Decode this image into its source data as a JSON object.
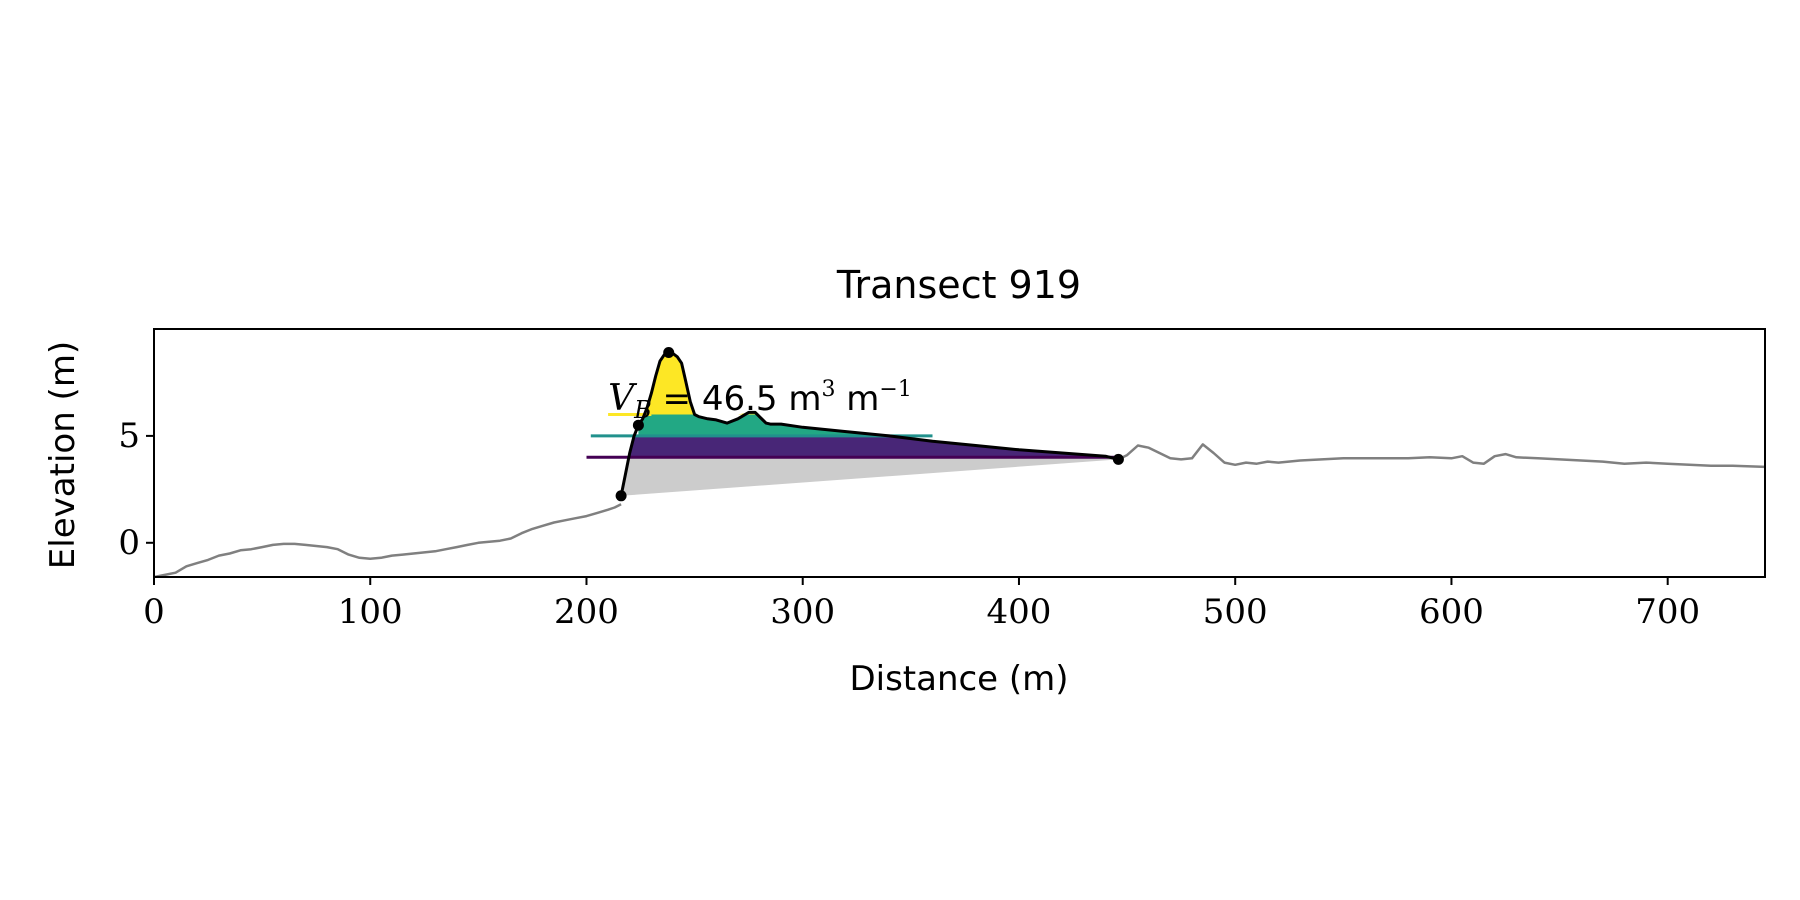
{
  "chart_data": {
    "type": "line",
    "title": "Transect 919",
    "xlabel": "Distance (m)",
    "ylabel": "Elevation (m)",
    "xlim": [
      0,
      745
    ],
    "ylim": [
      -1.6,
      10.0
    ],
    "xticks": [
      0,
      100,
      200,
      300,
      400,
      500,
      600,
      700
    ],
    "yticks": [
      0,
      5
    ],
    "grid": false,
    "annotation": {
      "symbol": "V",
      "subscript": "B",
      "text": " = 46.5 m",
      "unit_sup1": "3",
      "unit_mid": " m",
      "unit_sup2": "−1",
      "x": 210,
      "y": 6.2
    },
    "colors": {
      "profile": "#808080",
      "dune": "#000000",
      "base_fill": "#cccccc",
      "level1": "#440154",
      "level1_fill": "#482677",
      "level2": "#21918c",
      "level2_fill": "#22a884",
      "level3": "#fde725",
      "markers": "#000000"
    },
    "profile": {
      "x": [
        0,
        5,
        10,
        15,
        20,
        25,
        30,
        35,
        40,
        45,
        50,
        55,
        60,
        65,
        70,
        75,
        80,
        85,
        90,
        95,
        100,
        105,
        110,
        115,
        120,
        125,
        130,
        135,
        140,
        145,
        150,
        155,
        160,
        165,
        170,
        175,
        180,
        185,
        190,
        195,
        200,
        205,
        210,
        213,
        216
      ],
      "y": [
        -1.6,
        -1.5,
        -1.4,
        -1.1,
        -0.95,
        -0.8,
        -0.6,
        -0.5,
        -0.35,
        -0.3,
        -0.2,
        -0.1,
        -0.05,
        -0.05,
        -0.1,
        -0.15,
        -0.2,
        -0.3,
        -0.55,
        -0.7,
        -0.75,
        -0.7,
        -0.6,
        -0.55,
        -0.5,
        -0.45,
        -0.4,
        -0.3,
        -0.2,
        -0.1,
        0.0,
        0.05,
        0.1,
        0.2,
        0.45,
        0.65,
        0.8,
        0.95,
        1.05,
        1.15,
        1.25,
        1.4,
        1.55,
        1.65,
        1.8
      ]
    },
    "profile_right": {
      "x": [
        446,
        450,
        455,
        460,
        465,
        470,
        475,
        480,
        485,
        490,
        495,
        500,
        505,
        510,
        515,
        520,
        530,
        540,
        550,
        560,
        570,
        580,
        590,
        600,
        605,
        610,
        615,
        620,
        625,
        630,
        640,
        650,
        660,
        670,
        680,
        690,
        700,
        710,
        720,
        730,
        745
      ],
      "y": [
        3.9,
        4.1,
        4.55,
        4.45,
        4.2,
        3.95,
        3.9,
        3.95,
        4.6,
        4.2,
        3.75,
        3.65,
        3.75,
        3.7,
        3.8,
        3.75,
        3.85,
        3.9,
        3.95,
        3.95,
        3.95,
        3.95,
        4.0,
        3.95,
        4.05,
        3.75,
        3.7,
        4.05,
        4.15,
        4.0,
        3.95,
        3.9,
        3.85,
        3.8,
        3.7,
        3.75,
        3.7,
        3.65,
        3.6,
        3.6,
        3.55
      ]
    },
    "dune": {
      "x": [
        216,
        218,
        220,
        222,
        224,
        226,
        228,
        230,
        232,
        234,
        236,
        238,
        240,
        242,
        244,
        246,
        248,
        250,
        252,
        256,
        260,
        265,
        270,
        275,
        278,
        280,
        283,
        285,
        290,
        300,
        320,
        340,
        360,
        380,
        400,
        420,
        440,
        446
      ],
      "y": [
        2.2,
        3.2,
        4.2,
        5.0,
        5.5,
        5.8,
        6.3,
        7.0,
        7.8,
        8.5,
        8.8,
        8.9,
        8.85,
        8.7,
        8.4,
        7.5,
        6.6,
        6.0,
        5.9,
        5.8,
        5.75,
        5.6,
        5.8,
        6.1,
        6.1,
        5.9,
        5.6,
        5.55,
        5.55,
        5.4,
        5.2,
        5.0,
        4.75,
        4.55,
        4.35,
        4.2,
        4.05,
        3.9
      ]
    },
    "baseline": {
      "x": [
        216,
        446
      ],
      "y": [
        2.2,
        3.9
      ]
    },
    "levels": [
      {
        "name": "level-1",
        "y": 4.0,
        "x_start": 200,
        "color_key": "level1",
        "fill_key": "level1_fill"
      },
      {
        "name": "level-2",
        "y": 5.0,
        "x_start": 202,
        "color_key": "level2",
        "fill_key": "level2_fill"
      },
      {
        "name": "level-3",
        "y": 6.0,
        "x_start": 210,
        "color_key": "level3",
        "fill_key": "level3"
      }
    ],
    "markers": [
      {
        "name": "dune-toe-marker",
        "x": 216,
        "y": 2.2
      },
      {
        "name": "dune-mid-marker",
        "x": 224,
        "y": 5.5
      },
      {
        "name": "dune-crest-marker",
        "x": 238,
        "y": 8.9
      },
      {
        "name": "dune-heel-marker",
        "x": 446,
        "y": 3.9
      }
    ]
  }
}
